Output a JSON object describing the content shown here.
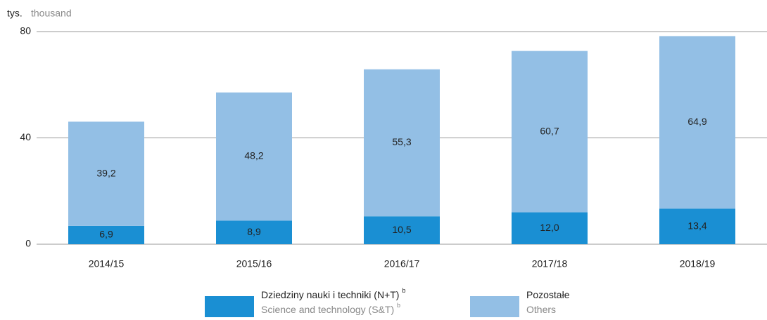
{
  "chart_data": {
    "type": "stacked_bar",
    "y_label": "tys.",
    "y_label_en": "thousand",
    "categories": [
      "2014/15",
      "2015/16",
      "2016/17",
      "2017/18",
      "2018/19"
    ],
    "series": [
      {
        "name": "Dziedziny nauki i techniki (N+T)",
        "name_en": "Science and technology (S&T)",
        "footnote_mark": "b",
        "color": "#1a8fd3",
        "values": [
          6.9,
          8.9,
          10.5,
          12.0,
          13.4
        ],
        "value_labels": [
          "6,9",
          "8,9",
          "10,5",
          "12,0",
          "13,4"
        ]
      },
      {
        "name": "Pozostałe",
        "name_en": "Others",
        "color": "#93bfe5",
        "values": [
          39.2,
          48.2,
          55.3,
          60.7,
          64.9
        ],
        "value_labels": [
          "39,2",
          "48,2",
          "55,3",
          "60,7",
          "64,9"
        ]
      }
    ],
    "ylim": [
      0,
      80
    ],
    "yticks": [
      0,
      40,
      80
    ],
    "grid": true
  }
}
